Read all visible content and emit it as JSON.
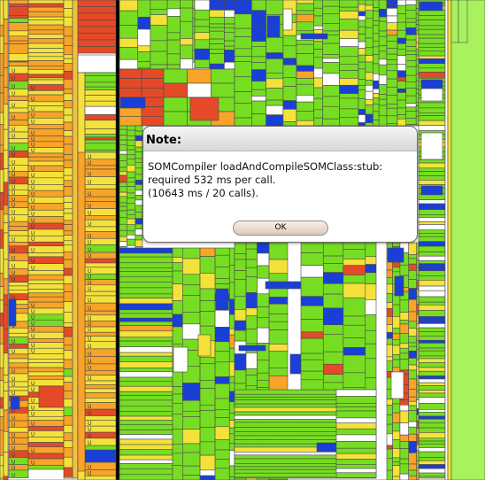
{
  "dialog": {
    "title": "Note:",
    "lines": [
      "SOMCompiler loadAndCompileSOMClass:stub:",
      "required 532 ms per call.",
      "(10643 ms / 20 calls)."
    ],
    "ok_label": "OK"
  },
  "treemap": {
    "cell_label": "U",
    "colors": {
      "background": "#ffffff",
      "border": "#4a4a4a",
      "green": "#77dd22",
      "bright_green": "#a8f25e",
      "yellow": "#f4e23a",
      "orange": "#f7a428",
      "red": "#e44a28",
      "blue": "#1a3fd6",
      "divider": "#000000"
    }
  }
}
